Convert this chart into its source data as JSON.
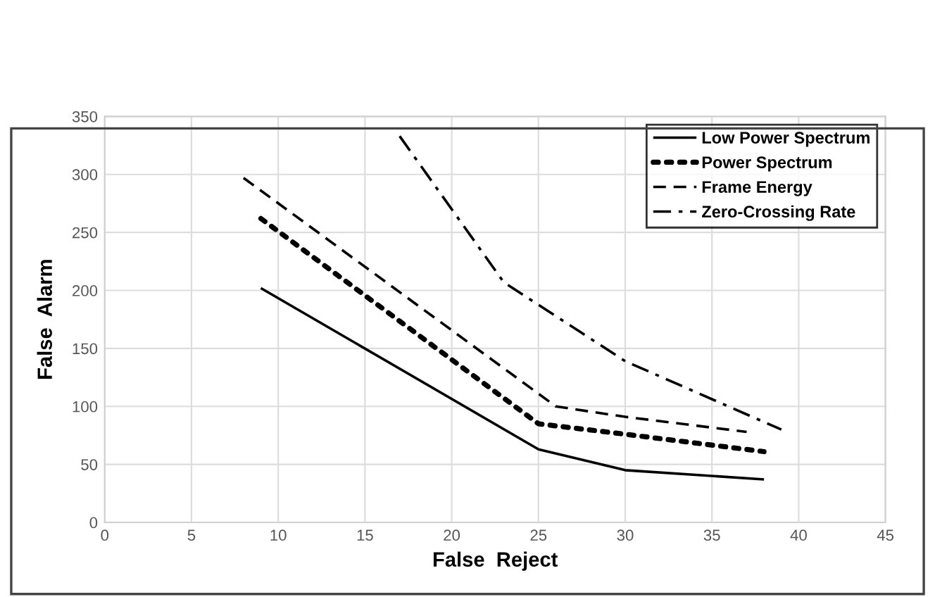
{
  "chart_data": {
    "type": "line",
    "xlabel": "False  Reject",
    "ylabel": "False  Alarm",
    "xlim": [
      0,
      45
    ],
    "xticks": [
      0,
      5,
      10,
      15,
      20,
      25,
      30,
      35,
      40,
      45
    ],
    "ylim": [
      0,
      350
    ],
    "yticks": [
      0,
      50,
      100,
      150,
      200,
      250,
      300,
      350
    ],
    "grid": true,
    "legend": "top right",
    "marker": "none",
    "series": [
      {
        "name": "Low Power Spectrum",
        "color": "#000000",
        "line_style": "solid",
        "x": [
          9,
          25,
          30,
          38
        ],
        "values": [
          202,
          63,
          45,
          37
        ]
      },
      {
        "name": "Power Spectrum",
        "color": "#000000",
        "line_style": "dotted",
        "x": [
          9,
          25,
          30,
          38
        ],
        "values": [
          262,
          85,
          76,
          61
        ]
      },
      {
        "name": "Frame Energy",
        "color": "#000000",
        "line_style": "dashed",
        "x": [
          8,
          26,
          30,
          37
        ],
        "values": [
          297,
          100,
          91,
          78
        ]
      },
      {
        "name": "Zero-Crossing Rate",
        "color": "#000000",
        "line_style": "dashdot",
        "x": [
          17,
          23,
          30,
          39
        ],
        "values": [
          333,
          207,
          139,
          80
        ]
      }
    ]
  }
}
